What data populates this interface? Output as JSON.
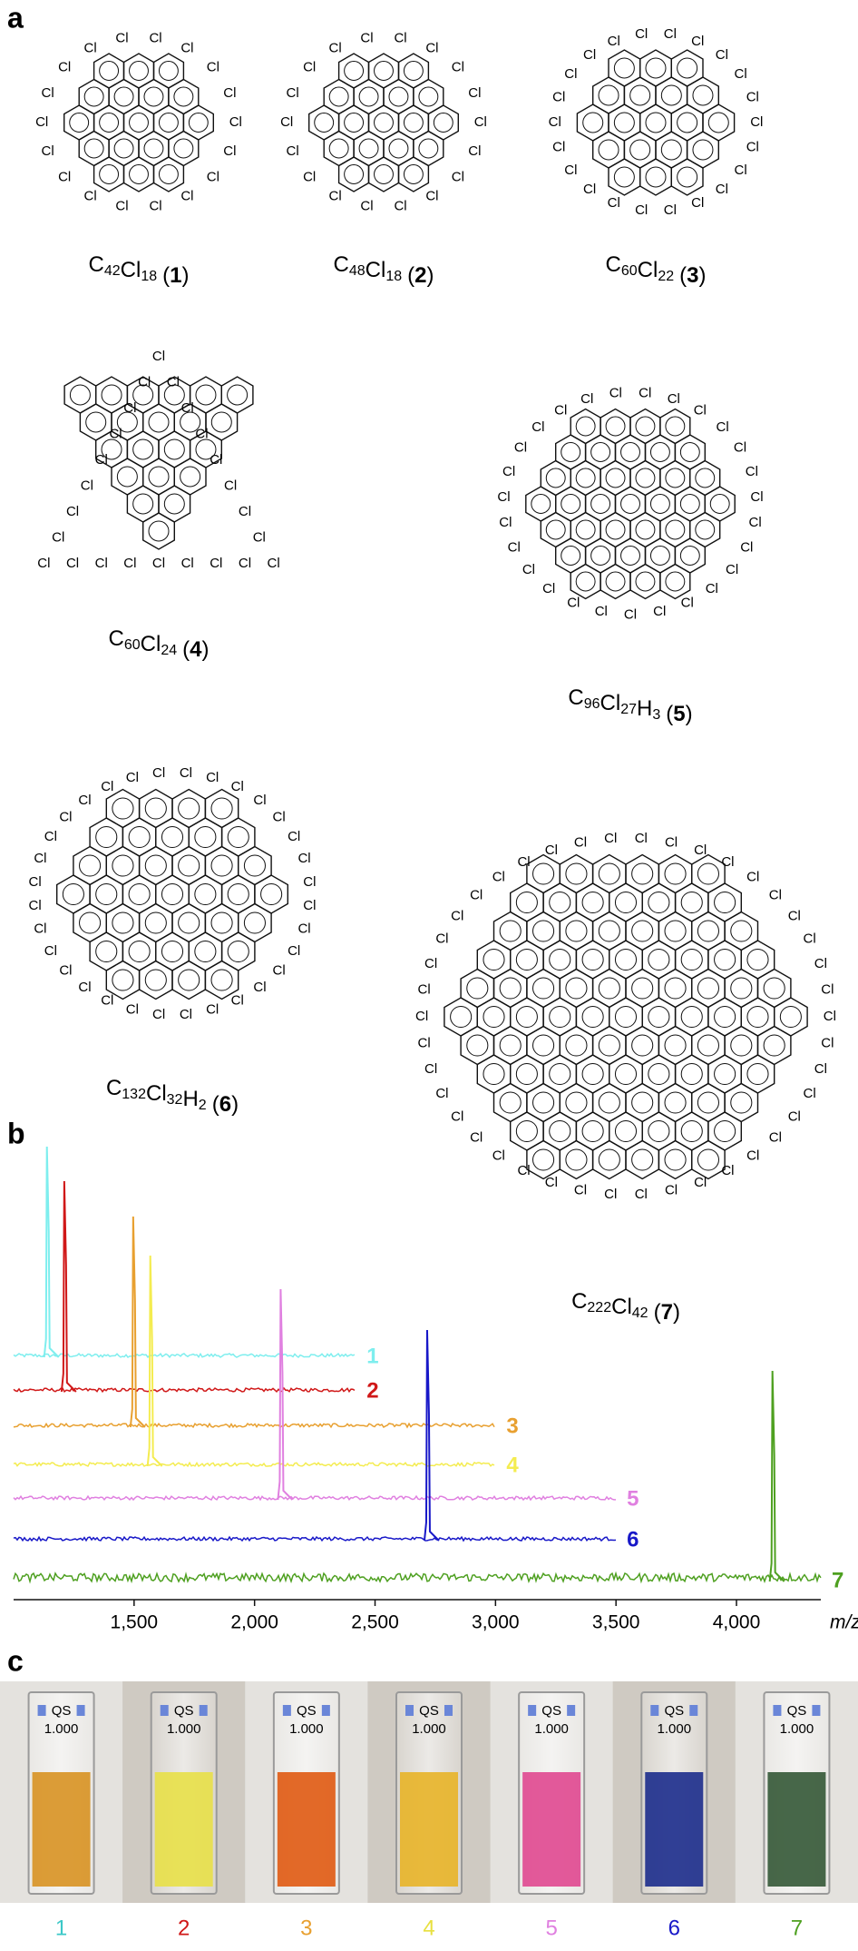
{
  "panels": [
    "a",
    "b",
    "c"
  ],
  "caption_brackets": [
    "(",
    ")"
  ],
  "molecules": [
    {
      "formula": [
        {
          "el": "C",
          "sub": "42"
        },
        {
          "el": "Cl",
          "sub": "18"
        }
      ],
      "number": "1",
      "substituent": "Cl"
    },
    {
      "formula": [
        {
          "el": "C",
          "sub": "48"
        },
        {
          "el": "Cl",
          "sub": "18"
        }
      ],
      "number": "2",
      "substituent": "Cl"
    },
    {
      "formula": [
        {
          "el": "C",
          "sub": "60"
        },
        {
          "el": "Cl",
          "sub": "22"
        }
      ],
      "number": "3",
      "substituent": "Cl"
    },
    {
      "formula": [
        {
          "el": "C",
          "sub": "60"
        },
        {
          "el": "Cl",
          "sub": "24"
        }
      ],
      "number": "4",
      "substituent": "Cl"
    },
    {
      "formula": [
        {
          "el": "C",
          "sub": "96"
        },
        {
          "el": "Cl",
          "sub": "27"
        },
        {
          "el": "H",
          "sub": "3"
        }
      ],
      "number": "5",
      "substituent": "Cl"
    },
    {
      "formula": [
        {
          "el": "C",
          "sub": "132"
        },
        {
          "el": "Cl",
          "sub": "32"
        },
        {
          "el": "H",
          "sub": "2"
        }
      ],
      "number": "6",
      "substituent": "Cl"
    },
    {
      "formula": [
        {
          "el": "C",
          "sub": "222"
        },
        {
          "el": "Cl",
          "sub": "42"
        }
      ],
      "number": "7",
      "substituent": "Cl"
    }
  ],
  "chart_data": {
    "type": "line",
    "xlabel": "m/z",
    "xlim": [
      1000,
      4350
    ],
    "xticks": [
      {
        "value": 1500,
        "label": "1,500"
      },
      {
        "value": 2000,
        "label": "2,000"
      },
      {
        "value": 2500,
        "label": "2,500"
      },
      {
        "value": 3000,
        "label": "3,000"
      },
      {
        "value": 3500,
        "label": "3,500"
      },
      {
        "value": 4000,
        "label": "4,000"
      }
    ],
    "series": [
      {
        "name": "1",
        "color": "#7eeeee",
        "peak_mz": 1142,
        "mz_range": [
          1000,
          2420
        ]
      },
      {
        "name": "2",
        "color": "#d01818",
        "peak_mz": 1214,
        "mz_range": [
          1000,
          2420
        ]
      },
      {
        "name": "3",
        "color": "#e8a030",
        "peak_mz": 1500,
        "mz_range": [
          1000,
          3000
        ]
      },
      {
        "name": "4",
        "color": "#f4ec50",
        "peak_mz": 1571,
        "mz_range": [
          1000,
          3000
        ]
      },
      {
        "name": "5",
        "color": "#e080e0",
        "peak_mz": 2112,
        "mz_range": [
          1000,
          3500
        ]
      },
      {
        "name": "6",
        "color": "#1818c8",
        "peak_mz": 2720,
        "mz_range": [
          1000,
          3500
        ]
      },
      {
        "name": "7",
        "color": "#4ea020",
        "peak_mz": 4153,
        "mz_range": [
          1000,
          4350
        ]
      }
    ]
  },
  "cuvettes": {
    "cap_text": [
      "QS",
      "1.000"
    ],
    "items": [
      {
        "label": "1",
        "liquid": "#d89222",
        "label_color": "#3cc8c8"
      },
      {
        "label": "2",
        "liquid": "#e8e048",
        "label_color": "#d01818"
      },
      {
        "label": "3",
        "liquid": "#e05a12",
        "label_color": "#e8a030"
      },
      {
        "label": "4",
        "liquid": "#e8b428",
        "label_color": "#e8e040"
      },
      {
        "label": "5",
        "liquid": "#e04890",
        "label_color": "#e080e0"
      },
      {
        "label": "6",
        "liquid": "#1c2c8c",
        "label_color": "#1818c8"
      },
      {
        "label": "7",
        "liquid": "#345836",
        "label_color": "#4ea020"
      }
    ]
  }
}
